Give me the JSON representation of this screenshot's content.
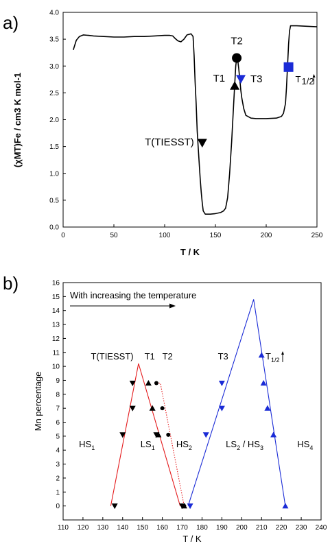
{
  "chart_data": [
    {
      "panel_label": "a)",
      "type": "line",
      "xlabel": "T / K",
      "ylabel": "(χMT)Fe / cm3 K mol-1",
      "xlim": [
        0,
        250
      ],
      "ylim": [
        0.0,
        4.0
      ],
      "xticks": [
        "0",
        "50",
        "100",
        "150",
        "200",
        "250"
      ],
      "yticks": [
        "0.0",
        "0.5",
        "1.0",
        "1.5",
        "2.0",
        "2.5",
        "3.0",
        "3.5",
        "4.0"
      ],
      "series": [
        {
          "color": "#000000",
          "x": [
            10,
            13,
            16,
            20,
            25,
            30,
            40,
            50,
            60,
            70,
            80,
            90,
            100,
            105,
            108,
            110,
            113,
            116,
            119,
            122,
            126,
            128,
            129,
            130,
            131,
            132,
            133,
            134,
            135,
            136,
            137,
            138,
            140,
            145,
            150,
            155,
            158,
            160,
            162,
            164,
            166,
            168,
            170,
            171,
            172,
            173,
            174,
            175,
            176,
            178,
            180,
            185,
            190,
            200,
            210,
            215,
            217,
            219,
            220,
            221,
            222,
            223,
            224,
            225,
            226,
            230,
            240,
            250
          ],
          "y": [
            3.3,
            3.48,
            3.55,
            3.58,
            3.57,
            3.56,
            3.55,
            3.54,
            3.54,
            3.55,
            3.55,
            3.56,
            3.57,
            3.57,
            3.56,
            3.52,
            3.47,
            3.45,
            3.5,
            3.58,
            3.6,
            3.55,
            3.2,
            2.7,
            2.3,
            1.8,
            1.5,
            1.2,
            0.9,
            0.65,
            0.45,
            0.3,
            0.24,
            0.24,
            0.25,
            0.27,
            0.3,
            0.35,
            0.55,
            1.0,
            1.6,
            2.3,
            3.0,
            3.15,
            3.1,
            2.95,
            2.75,
            2.55,
            2.4,
            2.2,
            2.08,
            2.03,
            2.02,
            2.02,
            2.03,
            2.06,
            2.12,
            2.3,
            2.6,
            3.0,
            3.4,
            3.65,
            3.75,
            3.75,
            3.75,
            3.75,
            3.74,
            3.73
          ]
        }
      ],
      "markers": [
        {
          "label": "T(TIESST)",
          "x": 137,
          "y": 1.57,
          "shape": "triangle-down",
          "color": "#000000"
        },
        {
          "label": "T1",
          "x": 169,
          "y": 2.63,
          "shape": "triangle-up",
          "color": "#000000"
        },
        {
          "label": "T2",
          "x": 171,
          "y": 3.15,
          "shape": "circle",
          "color": "#000000"
        },
        {
          "label": "T3",
          "x": 175,
          "y": 2.76,
          "shape": "triangle-down",
          "color": "#1a2bd6"
        },
        {
          "label": "T1/2↑",
          "x": 222,
          "y": 2.98,
          "shape": "square",
          "color": "#1a2bd6"
        }
      ]
    },
    {
      "panel_label": "b)",
      "type": "scatter",
      "xlabel": "T / K",
      "ylabel": "Mn percentage",
      "xlim": [
        110,
        240
      ],
      "ylim": [
        -1,
        16
      ],
      "xticks": [
        "110",
        "120",
        "130",
        "140",
        "150",
        "160",
        "170",
        "180",
        "190",
        "200",
        "210",
        "220",
        "230",
        "240"
      ],
      "yticks": [
        "0",
        "1",
        "2",
        "3",
        "4",
        "5",
        "6",
        "7",
        "8",
        "9",
        "10",
        "11",
        "12",
        "13",
        "14",
        "15",
        "16"
      ],
      "arrow_text": "With increasing the temperature",
      "region_labels": [
        {
          "text": "HS",
          "sub": "1",
          "x": 118,
          "y": 4.2
        },
        {
          "text": "LS",
          "sub": "1",
          "x": 149,
          "y": 4.2
        },
        {
          "text": "HS",
          "sub": "2",
          "x": 167,
          "y": 4.2
        },
        {
          "text": "LS",
          "sub": "2",
          "text2": " / HS",
          "sub2": "3",
          "x": 192,
          "y": 4.2
        },
        {
          "text": "HS",
          "sub": "4",
          "x": 228,
          "y": 4.2
        }
      ],
      "series_labels": [
        {
          "text": "T(TIESST)",
          "x": 124,
          "y": 10.5
        },
        {
          "text": "T1",
          "x": 151,
          "y": 10.5
        },
        {
          "text": "T2",
          "x": 160,
          "y": 10.5
        },
        {
          "text": "T3",
          "x": 188,
          "y": 10.5
        },
        {
          "text": "T",
          "sub": "1/2",
          "arrow": true,
          "x": 212,
          "y": 10.5
        }
      ],
      "series": [
        {
          "name": "T(TIESST)",
          "marker": "triangle-down",
          "color": "#000000",
          "x": [
            136,
            140,
            145,
            145,
            157,
            170
          ],
          "y": [
            0,
            5.1,
            7.0,
            8.8,
            5.1,
            0
          ]
        },
        {
          "name": "T1",
          "marker": "triangle-up",
          "color": "#000000",
          "x": [
            153,
            155,
            158,
            171
          ],
          "y": [
            8.8,
            7.0,
            5.1,
            0
          ]
        },
        {
          "name": "T2",
          "marker": "circle",
          "color": "#000000",
          "x": [
            157,
            160,
            163,
            171
          ],
          "y": [
            8.8,
            7.0,
            5.1,
            0
          ]
        },
        {
          "name": "T3",
          "marker": "triangle-down",
          "color": "#1a2bd6",
          "x": [
            174,
            182,
            190,
            190
          ],
          "y": [
            0,
            5.1,
            7.0,
            8.8
          ]
        },
        {
          "name": "T1/2",
          "marker": "triangle-up",
          "color": "#1a2bd6",
          "x": [
            210,
            211,
            213,
            216,
            222
          ],
          "y": [
            10.8,
            8.8,
            7.0,
            5.1,
            0
          ]
        }
      ],
      "lines": [
        {
          "color": "#e41a1c",
          "style": "solid",
          "x": [
            134,
            148,
            169
          ],
          "y": [
            0,
            10.2,
            0
          ]
        },
        {
          "color": "#e41a1c",
          "style": "dotted",
          "x": [
            157,
            159,
            171
          ],
          "y": [
            8.8,
            8.8,
            0
          ]
        },
        {
          "color": "#1a2bd6",
          "style": "solid",
          "x": [
            173,
            206,
            222
          ],
          "y": [
            0,
            14.8,
            0
          ]
        }
      ]
    }
  ]
}
